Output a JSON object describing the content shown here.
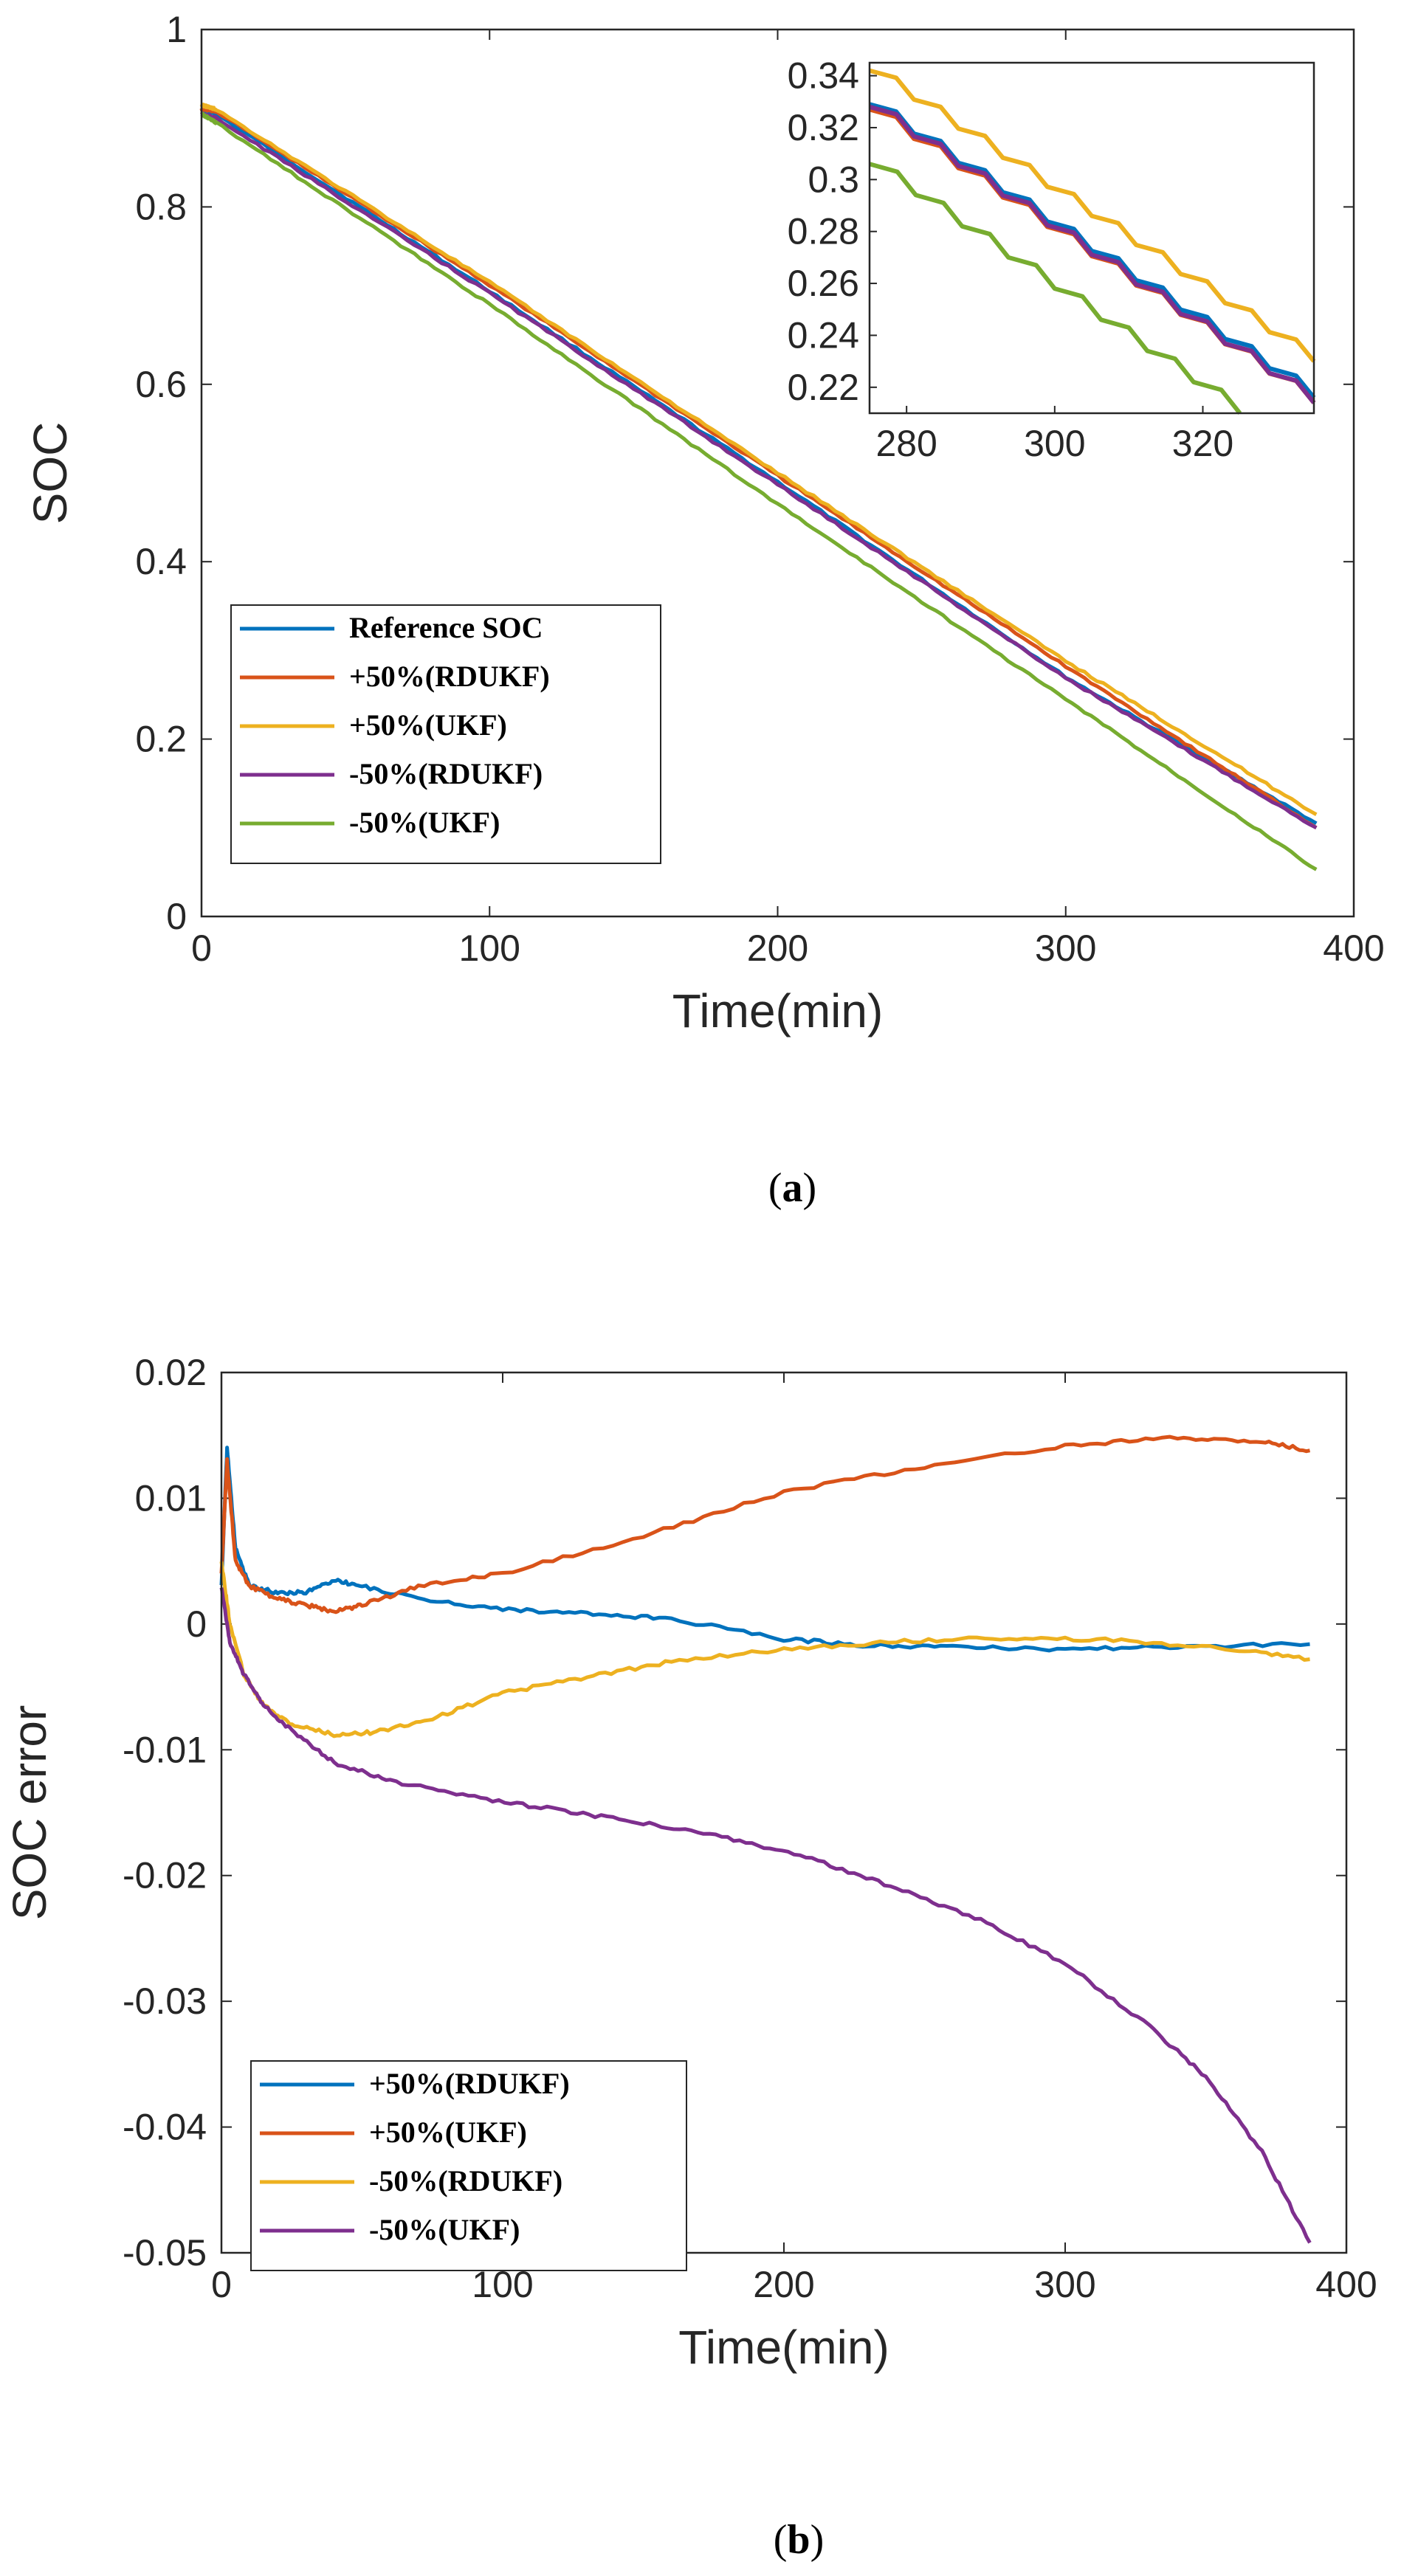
{
  "chart_data": [
    {
      "type": "line",
      "panel": "a",
      "caption_letter": "a",
      "xlabel": "Time(min)",
      "ylabel": "SOC",
      "xlim": [
        0,
        400
      ],
      "ylim": [
        0,
        1
      ],
      "xticks": [
        "0",
        "100",
        "200",
        "300",
        "400"
      ],
      "yticks": [
        "0",
        "0.2",
        "0.4",
        "0.6",
        "0.8",
        "1"
      ],
      "legend_position": "bottom-left",
      "series": [
        {
          "name": "Reference SOC",
          "color": "#0072BD",
          "x": [
            0,
            5,
            100,
            200,
            300,
            387
          ],
          "y": [
            0.91,
            0.905,
            0.705,
            0.49,
            0.27,
            0.105
          ]
        },
        {
          "name": "+50%(RDUKF)",
          "color": "#D95319",
          "x": [
            0,
            5,
            100,
            200,
            300,
            387
          ],
          "y": [
            0.91,
            0.908,
            0.712,
            0.497,
            0.282,
            0.1
          ]
        },
        {
          "name": "+50%(UKF)",
          "color": "#EDB120",
          "x": [
            0,
            5,
            100,
            200,
            300,
            387
          ],
          "y": [
            0.915,
            0.91,
            0.715,
            0.5,
            0.288,
            0.115
          ]
        },
        {
          "name": "-50%(RDUKF)",
          "color": "#7E2F8E",
          "x": [
            0,
            5,
            100,
            200,
            300,
            387
          ],
          "y": [
            0.905,
            0.9,
            0.703,
            0.487,
            0.269,
            0.1
          ]
        },
        {
          "name": "-50%(UKF)",
          "color": "#77AC30",
          "x": [
            0,
            5,
            100,
            200,
            300,
            387
          ],
          "y": [
            0.905,
            0.895,
            0.69,
            0.465,
            0.245,
            0.053
          ]
        }
      ],
      "inset": {
        "xlim": [
          275,
          335
        ],
        "ylim": [
          0.21,
          0.345
        ],
        "xticks": [
          "280",
          "300",
          "320"
        ],
        "yticks": [
          "0.22",
          "0.24",
          "0.26",
          "0.28",
          "0.3",
          "0.32",
          "0.34"
        ],
        "series": [
          {
            "name": "Reference SOC",
            "color": "#0072BD",
            "x": [
              275,
              335
            ],
            "y": [
              0.329,
              0.216
            ]
          },
          {
            "name": "+50%(RDUKF)",
            "color": "#D95319",
            "x": [
              275,
              335
            ],
            "y": [
              0.327,
              0.214
            ]
          },
          {
            "name": "+50%(UKF)",
            "color": "#EDB120",
            "x": [
              275,
              335
            ],
            "y": [
              0.342,
              0.23
            ]
          },
          {
            "name": "-50%(RDUKF)",
            "color": "#7E2F8E",
            "x": [
              275,
              335
            ],
            "y": [
              0.328,
              0.214
            ]
          },
          {
            "name": "-50%(UKF)",
            "color": "#77AC30",
            "x": [
              275,
              325
            ],
            "y": [
              0.306,
              0.21
            ]
          }
        ]
      }
    },
    {
      "type": "line",
      "panel": "b",
      "caption_letter": "b",
      "xlabel": "Time(min)",
      "ylabel": "SOC error",
      "xlim": [
        0,
        400
      ],
      "ylim": [
        -0.05,
        0.02
      ],
      "xticks": [
        "0",
        "100",
        "200",
        "300",
        "400"
      ],
      "yticks": [
        "-0.05",
        "-0.04",
        "-0.03",
        "-0.02",
        "-0.01",
        "0",
        "0.01",
        "0.02"
      ],
      "legend_position": "bottom-left",
      "series": [
        {
          "name": "+50%(RDUKF)",
          "color": "#0072BD",
          "x": [
            0,
            2,
            5,
            10,
            20,
            30,
            40,
            50,
            70,
            100,
            130,
            160,
            200,
            230,
            260,
            300,
            340,
            387
          ],
          "y": [
            0.003,
            0.014,
            0.006,
            0.003,
            0.0025,
            0.0025,
            0.0035,
            0.003,
            0.002,
            0.0012,
            0.0008,
            0.0004,
            -0.0012,
            -0.0017,
            -0.0018,
            -0.002,
            -0.0018,
            -0.0016
          ]
        },
        {
          "name": "+50%(UKF)",
          "color": "#D95319",
          "x": [
            0,
            2,
            5,
            10,
            20,
            30,
            40,
            50,
            70,
            100,
            150,
            200,
            250,
            300,
            340,
            370,
            387
          ],
          "y": [
            0.004,
            0.013,
            0.005,
            0.003,
            0.002,
            0.0015,
            0.001,
            0.0015,
            0.003,
            0.004,
            0.007,
            0.0105,
            0.0125,
            0.0142,
            0.0148,
            0.0145,
            0.0138
          ]
        },
        {
          "name": "-50%(RDUKF)",
          "color": "#EDB120",
          "x": [
            0,
            3,
            8,
            15,
            25,
            40,
            55,
            75,
            100,
            130,
            160,
            200,
            240,
            280,
            320,
            360,
            387
          ],
          "y": [
            0.005,
            0.0,
            -0.004,
            -0.0065,
            -0.008,
            -0.0088,
            -0.0086,
            -0.0075,
            -0.0055,
            -0.0042,
            -0.003,
            -0.002,
            -0.0014,
            -0.0011,
            -0.0013,
            -0.002,
            -0.0028
          ]
        },
        {
          "name": "-50%(UKF)",
          "color": "#7E2F8E",
          "x": [
            0,
            3,
            8,
            15,
            25,
            40,
            60,
            90,
            120,
            150,
            180,
            210,
            240,
            270,
            300,
            330,
            350,
            370,
            387
          ],
          "y": [
            0.003,
            -0.0015,
            -0.004,
            -0.0065,
            -0.0085,
            -0.011,
            -0.0125,
            -0.0138,
            -0.0148,
            -0.0158,
            -0.017,
            -0.0187,
            -0.021,
            -0.0235,
            -0.027,
            -0.032,
            -0.036,
            -0.042,
            -0.0492
          ]
        }
      ]
    }
  ]
}
